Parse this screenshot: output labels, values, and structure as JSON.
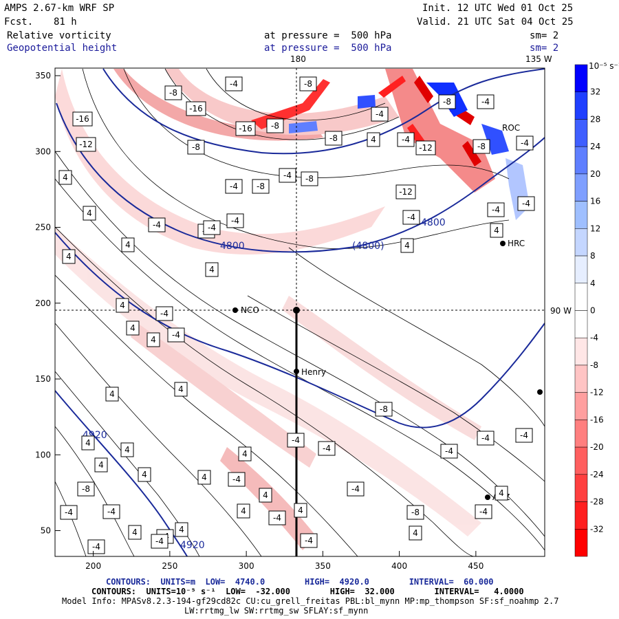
{
  "header": {
    "model": "AMPS 2.67-km WRF SP",
    "fcst_label": "Fcst.",
    "fcst_value": "81 h",
    "init": "Init. 12 UTC Wed 01 Oct 25",
    "valid": "Valid. 21 UTC Sat 04 Oct 25",
    "field1": "Relative vorticity",
    "field2": "Geopotential height",
    "pressure1": "at pressure =  500 hPa",
    "pressure2": "at pressure =  500 hPa",
    "sm1": "sm= 2",
    "sm2": "sm= 2"
  },
  "map": {
    "lon_labels": [
      "180",
      "135 W",
      "90 W"
    ],
    "stations": [
      "NCO",
      "Henry",
      "HRC",
      "AGZ",
      "ROC"
    ],
    "geopotential_labels": [
      "4800",
      "(4800)",
      "4800",
      "4920",
      "4920"
    ],
    "vorticity_labels": [
      "-16",
      "-12",
      "-16",
      "-8",
      "-16",
      "-8",
      "-4",
      "-8",
      "-4",
      "-8",
      "-8",
      "-4",
      "-4",
      "-8",
      "-4",
      "-8",
      "-8",
      "-12",
      "-4",
      "-4",
      "-12",
      "-8",
      "-4",
      "-4",
      "4",
      "4",
      "4",
      "4",
      "4",
      "4",
      "4",
      "-4",
      "-4",
      "4",
      "4",
      "4",
      "4",
      "4",
      "4",
      "-4",
      "4",
      "4",
      "-4",
      "-4",
      "4",
      "4",
      "4",
      "-4",
      "-4",
      "-8",
      "-4",
      "-4",
      "-4",
      "-8",
      "-4",
      "4",
      "4",
      "-4",
      "-8",
      "-4",
      "-4",
      "4",
      "-4",
      "4",
      "-4",
      "-4",
      "-4",
      "-4",
      "4",
      "-4",
      "4",
      "-4",
      "4",
      "-4",
      "4"
    ],
    "x_axis": {
      "min": 175,
      "max": 495,
      "ticks": [
        200,
        250,
        300,
        350,
        400,
        450
      ]
    },
    "y_axis": {
      "min": 33,
      "max": 355,
      "ticks": [
        50,
        100,
        150,
        200,
        250,
        300,
        350
      ]
    },
    "colorbar": {
      "unit_label": "10⁻⁵ s⁻¹",
      "ticks": [
        "32",
        "28",
        "24",
        "20",
        "16",
        "12",
        "8",
        "4",
        "0",
        "-4",
        "-8",
        "-12",
        "-16",
        "-20",
        "-24",
        "-28",
        "-32"
      ],
      "colors": [
        "#0000ff",
        "#1f3fff",
        "#3f5fff",
        "#5f7fff",
        "#7f9fff",
        "#9fbfff",
        "#c4d6ff",
        "#e6eeff",
        "#ffffff",
        "#ffffff",
        "#ffe6e6",
        "#ffc4c4",
        "#ff9f9f",
        "#ff7f7f",
        "#ff5f5f",
        "#ff3f3f",
        "#ff1f1f",
        "#ff0000"
      ]
    }
  },
  "footer": {
    "line1": "CONTOURS:  UNITS=m  LOW=  4740.0        HIGH=  4920.0        INTERVAL=  60.000",
    "line2": "CONTOURS:  UNITS=10⁻⁵ s⁻¹  LOW=  -32.000        HIGH=  32.000        INTERVAL=   4.0000",
    "line3": "Model Info: MPASv8.2.3-194-gf29cd82c CU:cu_grell_freitas PBL:bl_mynn MP:mp_thompson SF:sf_noahmp 2.7",
    "line4": "LW:rrtmg_lw SW:rrtmg_sw SFLAY:sf_mynn"
  }
}
